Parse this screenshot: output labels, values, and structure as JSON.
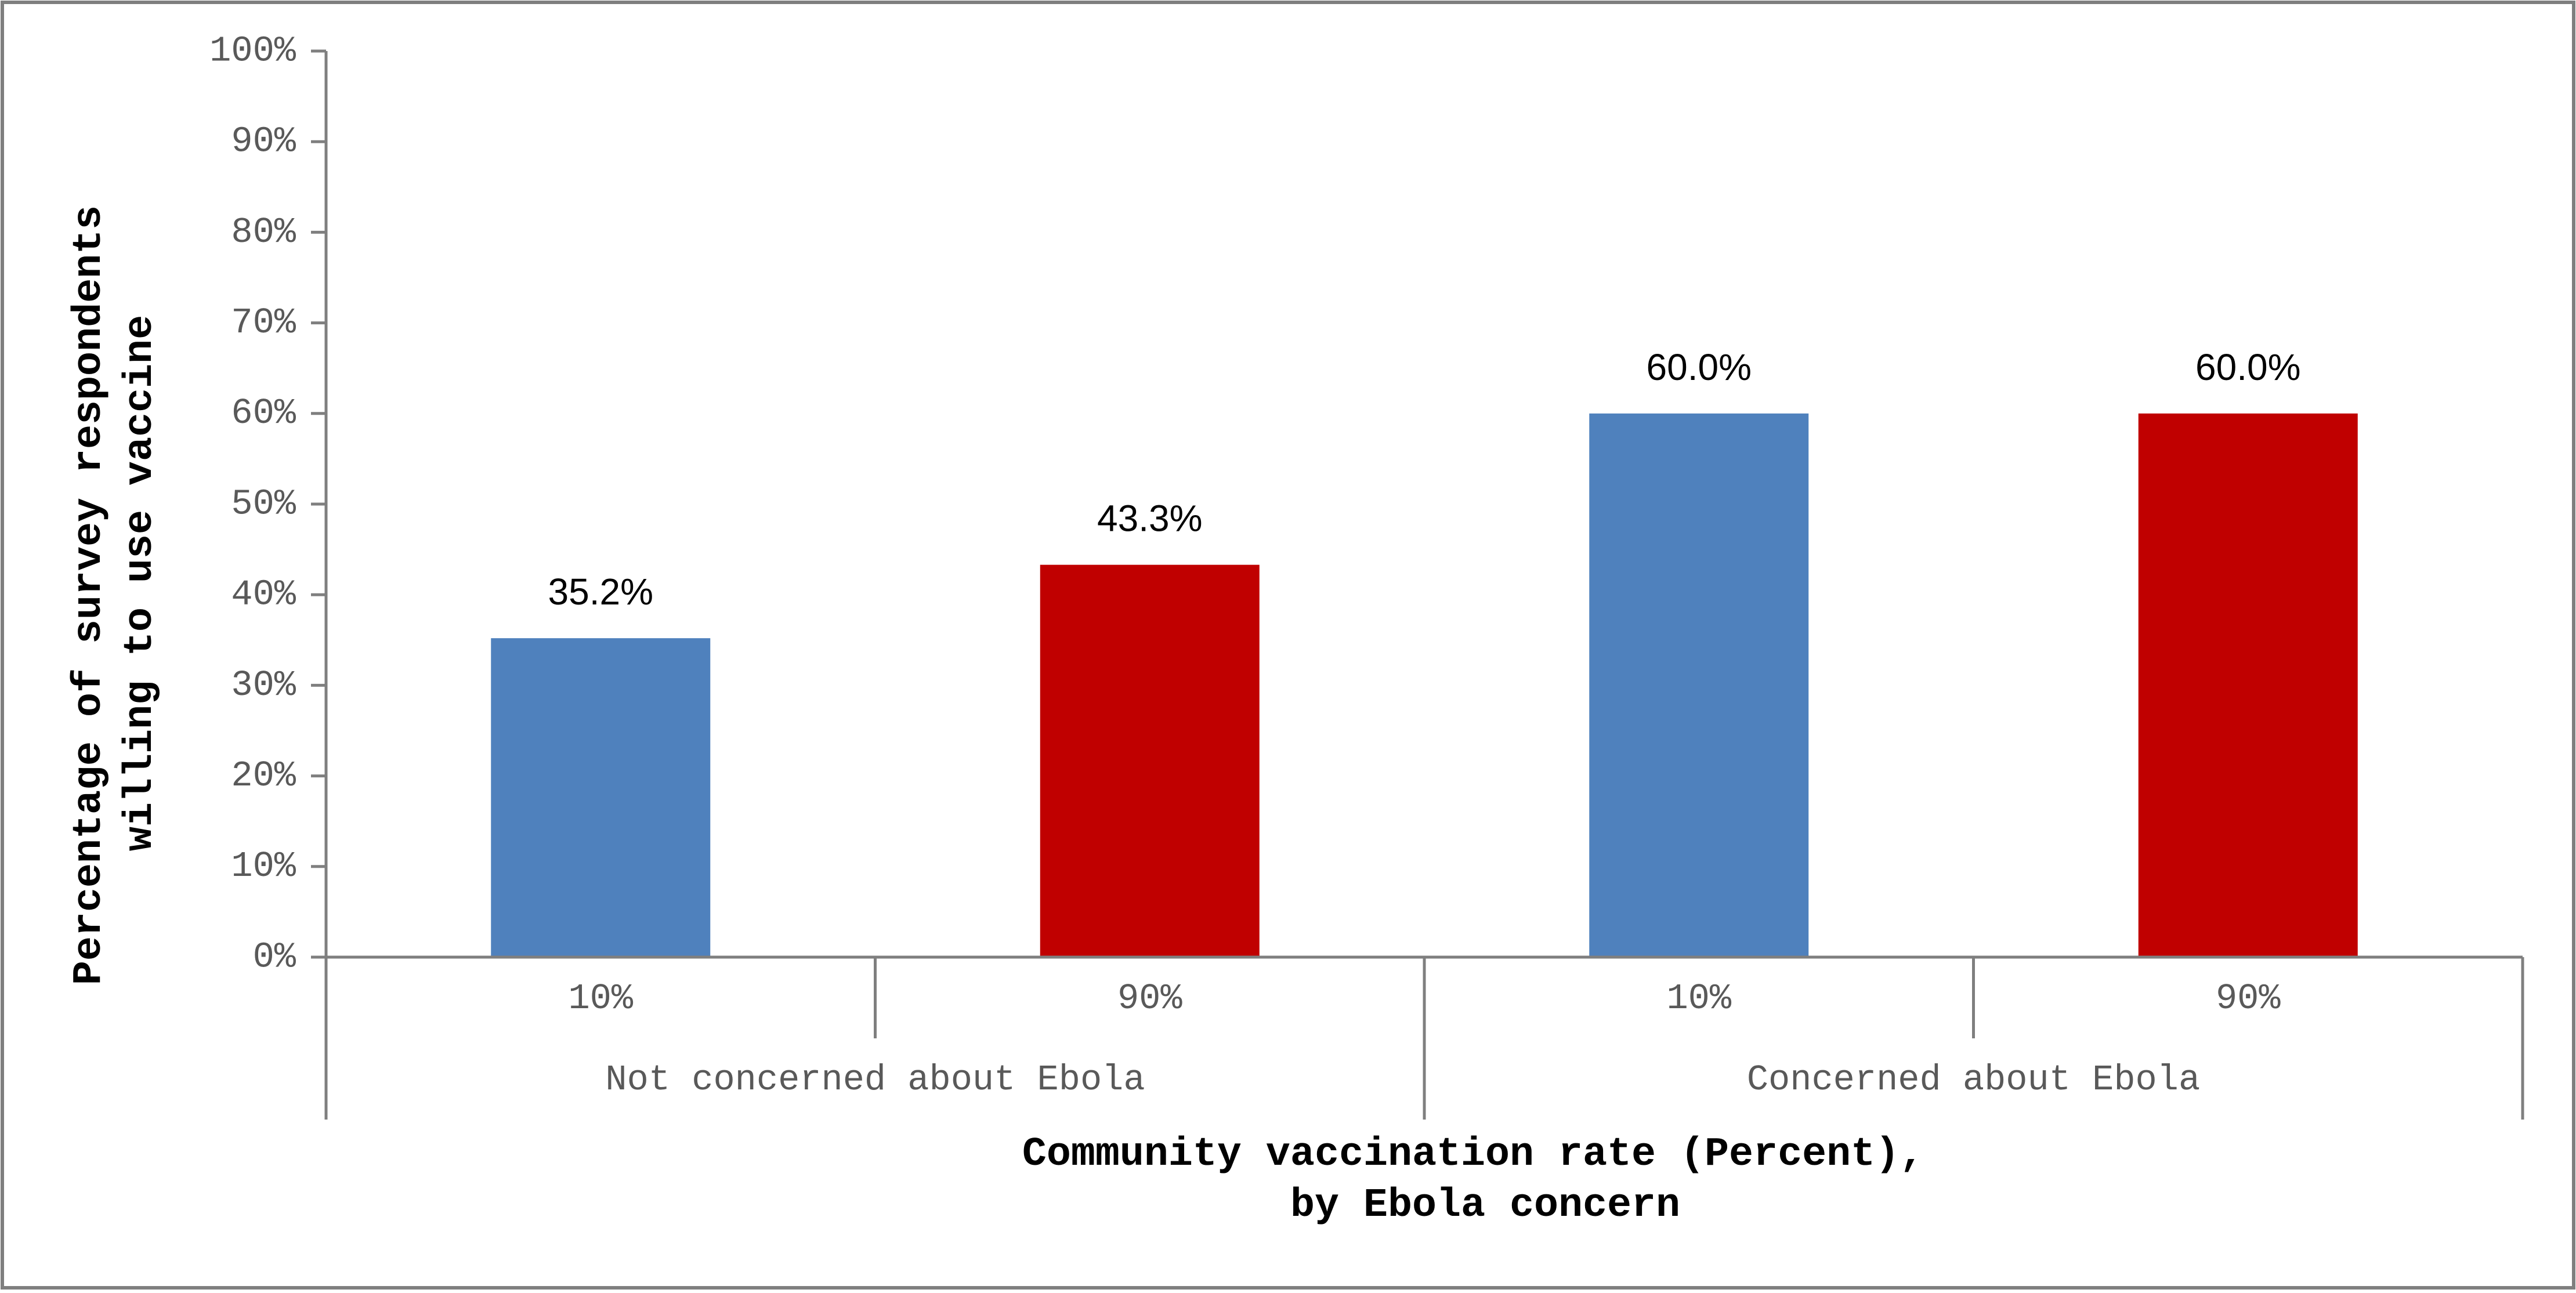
{
  "chart_data": {
    "type": "bar",
    "groups": [
      {
        "label": "Not concerned about Ebola",
        "categories": [
          "10%",
          "90%"
        ]
      },
      {
        "label": "Concerned about Ebola",
        "categories": [
          "10%",
          "90%"
        ]
      }
    ],
    "categories": [
      "10%",
      "90%",
      "10%",
      "90%"
    ],
    "values": [
      35.2,
      43.3,
      60.0,
      60.0
    ],
    "data_labels": [
      "35.2%",
      "43.3%",
      "60.0%",
      "60.0%"
    ],
    "bar_colors": [
      "#4F81BD",
      "#C00000",
      "#4F81BD",
      "#C00000"
    ],
    "ylim": [
      0,
      100
    ],
    "yticks": [
      "0%",
      "10%",
      "20%",
      "30%",
      "40%",
      "50%",
      "60%",
      "70%",
      "80%",
      "90%",
      "100%"
    ],
    "ylabel_lines": [
      "Percentage of survey respondents",
      "willing to use vaccine"
    ],
    "xlabel_lines": [
      "Community vaccination rate (Percent),",
      "by Ebola concern"
    ],
    "title": "",
    "grid": false,
    "legend": "none"
  }
}
